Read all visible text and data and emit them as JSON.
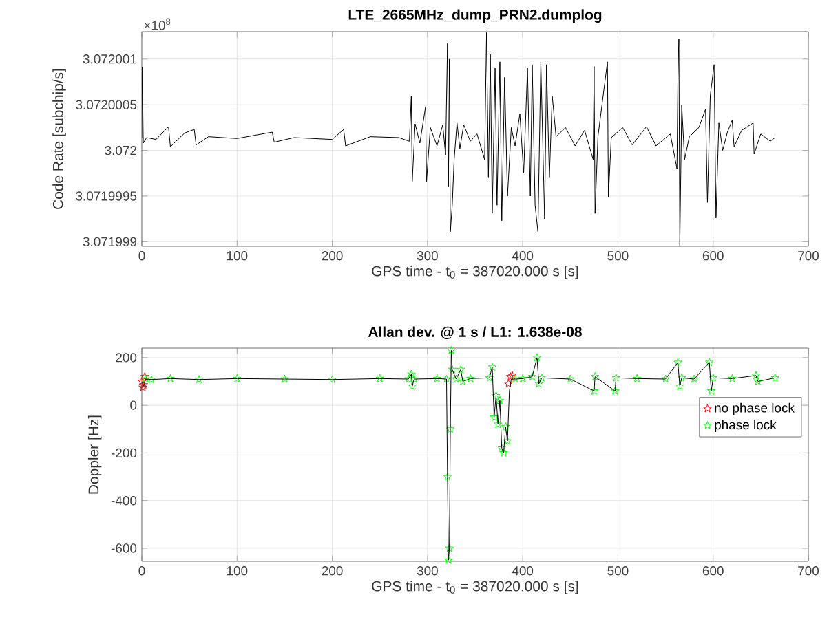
{
  "chart_data": [
    {
      "type": "line",
      "title": "LTE_2665MHz_dump_PRN2.dumplog",
      "xlabel": "GPS time - t$_{0}$ = 387020.000 s [s]",
      "ylabel": "Code Rate [subchip/s]",
      "annotations": [
        "×10$^{8}$"
      ],
      "xlim": [
        0,
        700
      ],
      "xticks": [
        0,
        100,
        200,
        300,
        400,
        500,
        600,
        700
      ],
      "ylim": [
        3.07199895,
        3.0720013
      ],
      "yticks": [
        3.071999,
        3.0719995,
        3.072,
        3.0720005,
        3.072001
      ],
      "grid": true,
      "series": [
        {
          "color": "#000000",
          "x": [
            0,
            0.5,
            1.5,
            5,
            15,
            28,
            30,
            45,
            55,
            57,
            70,
            100,
            137,
            139,
            160,
            200,
            212,
            214,
            240,
            270,
            281,
            283,
            284,
            287,
            292,
            298,
            299,
            303,
            310,
            316,
            319,
            321,
            322,
            323,
            324,
            326,
            328,
            331,
            334,
            338,
            345,
            352,
            360,
            362,
            364,
            366,
            368,
            371,
            373,
            376,
            378,
            381,
            384,
            388,
            392,
            397,
            401,
            405,
            408,
            410,
            413,
            416,
            419,
            423,
            425,
            428,
            431,
            435,
            445,
            455,
            465,
            474,
            475,
            476,
            479,
            489,
            490,
            493,
            505,
            515,
            530,
            540,
            555,
            562,
            563,
            564,
            565,
            567,
            570,
            575,
            585,
            592,
            594,
            597,
            601,
            603,
            606,
            610,
            615,
            620,
            622,
            630,
            642,
            643,
            650,
            660,
            665
          ],
          "values": [
            3.07200014,
            3.07200091,
            3.07200008,
            3.07200014,
            3.07200012,
            3.07200026,
            3.07200004,
            3.07200019,
            3.07200023,
            3.07200006,
            3.07200015,
            3.07200013,
            3.0720002,
            3.07200009,
            3.07200014,
            3.07200012,
            3.07200023,
            3.07200005,
            3.07200015,
            3.07200014,
            3.0720001,
            3.07200059,
            3.07199966,
            3.07200029,
            3.07200008,
            3.07200048,
            3.07199966,
            3.07200025,
            3.07200005,
            3.07200028,
            3.07199995,
            3.07200117,
            3.0719996,
            3.072001,
            3.07199911,
            3.0719994,
            3.0719999,
            3.0720003,
            3.07200002,
            3.07200028,
            3.0720001,
            3.07200018,
            3.0719999,
            3.07200129,
            3.0719997,
            3.07200105,
            3.07199931,
            3.0720009,
            3.0719994,
            3.07200097,
            3.07199923,
            3.0720008,
            3.0719995,
            3.07200025,
            3.07200005,
            3.0720004,
            3.07199975,
            3.0720009,
            3.0719995,
            3.07200094,
            3.0719994,
            3.07199911,
            3.07200097,
            3.07199925,
            3.07200094,
            3.0719997,
            3.0720006,
            3.07200015,
            3.07200025,
            3.07200005,
            3.07200022,
            3.0719999,
            3.07200092,
            3.07199931,
            3.07200015,
            3.07200097,
            3.07199949,
            3.07200014,
            3.07200025,
            3.07200006,
            3.07200026,
            3.07200005,
            3.07200018,
            3.0719998,
            3.0720008,
            3.07200122,
            3.07199896,
            3.0720005,
            3.0719999,
            3.07200015,
            3.07200025,
            3.07200045,
            3.07199943,
            3.0720006,
            3.07200094,
            3.07199926,
            3.0720003,
            3.072,
            3.0720002,
            3.07200033,
            3.07200004,
            3.07200022,
            3.0720003,
            3.07199996,
            3.07200018,
            3.0720001,
            3.07200014
          ]
        }
      ]
    },
    {
      "type": "line",
      "title": "Allan dev. @ 1 s / L1: 1.638e-08",
      "xlabel": "GPS time - t$_{0}$ = 387020.000 s [s]",
      "ylabel": "Doppler [Hz]",
      "xlim": [
        0,
        700
      ],
      "xticks": [
        0,
        100,
        200,
        300,
        400,
        500,
        600,
        700
      ],
      "ylim": [
        -655,
        240
      ],
      "yticks": [
        -600,
        -400,
        -200,
        0,
        200
      ],
      "grid": true,
      "legend": "top right",
      "series": [
        {
          "name": "no phase lock",
          "type": "scatter",
          "marker": "star",
          "color": "#ff0000",
          "x": [
            0,
            1,
            2,
            3,
            385,
            387,
            389
          ],
          "values": [
            100,
            75,
            85,
            120,
            90,
            120,
            125
          ]
        },
        {
          "name": "phase lock",
          "type": "scatter",
          "marker": "star",
          "color": "#00ff00",
          "x": [
            4,
            10,
            30,
            60,
            100,
            150,
            200,
            250,
            280,
            283,
            284,
            286,
            310,
            320,
            321,
            322,
            323,
            324,
            325,
            326,
            330,
            335,
            337,
            345,
            365,
            368,
            370,
            372,
            374,
            376,
            378,
            380,
            382,
            384,
            392,
            400,
            410,
            415,
            417,
            420,
            450,
            475,
            476,
            497,
            498,
            520,
            550,
            563,
            565,
            567,
            580,
            596,
            598,
            600,
            620,
            645,
            647,
            665
          ],
          "values": [
            110,
            108,
            112,
            108,
            112,
            110,
            108,
            112,
            110,
            130,
            80,
            110,
            112,
            110,
            -300,
            -650,
            -600,
            -100,
            230,
            150,
            110,
            150,
            100,
            112,
            115,
            160,
            -50,
            40,
            -80,
            20,
            -180,
            -200,
            -90,
            -150,
            110,
            112,
            120,
            200,
            90,
            115,
            110,
            60,
            120,
            60,
            115,
            112,
            110,
            180,
            80,
            115,
            110,
            180,
            60,
            115,
            112,
            125,
            100,
            115
          ]
        },
        {
          "type": "line",
          "color": "#000000",
          "x": [
            0,
            2,
            4,
            10,
            30,
            60,
            100,
            150,
            200,
            250,
            280,
            283,
            284,
            286,
            310,
            320,
            321,
            322,
            323,
            324,
            325,
            326,
            330,
            335,
            337,
            345,
            365,
            368,
            370,
            372,
            374,
            376,
            378,
            380,
            382,
            384,
            386,
            388,
            392,
            400,
            410,
            415,
            417,
            420,
            450,
            475,
            476,
            497,
            498,
            520,
            550,
            563,
            565,
            567,
            580,
            596,
            598,
            600,
            620,
            645,
            647,
            665
          ],
          "values": [
            100,
            80,
            110,
            108,
            112,
            108,
            112,
            110,
            108,
            112,
            110,
            130,
            80,
            110,
            112,
            110,
            -300,
            -650,
            -600,
            -100,
            230,
            150,
            110,
            150,
            100,
            112,
            115,
            160,
            -50,
            40,
            -80,
            20,
            -180,
            -200,
            -90,
            -150,
            60,
            110,
            110,
            112,
            120,
            200,
            90,
            115,
            110,
            60,
            120,
            60,
            115,
            112,
            110,
            180,
            80,
            115,
            110,
            180,
            60,
            115,
            112,
            125,
            100,
            115
          ]
        }
      ]
    }
  ]
}
